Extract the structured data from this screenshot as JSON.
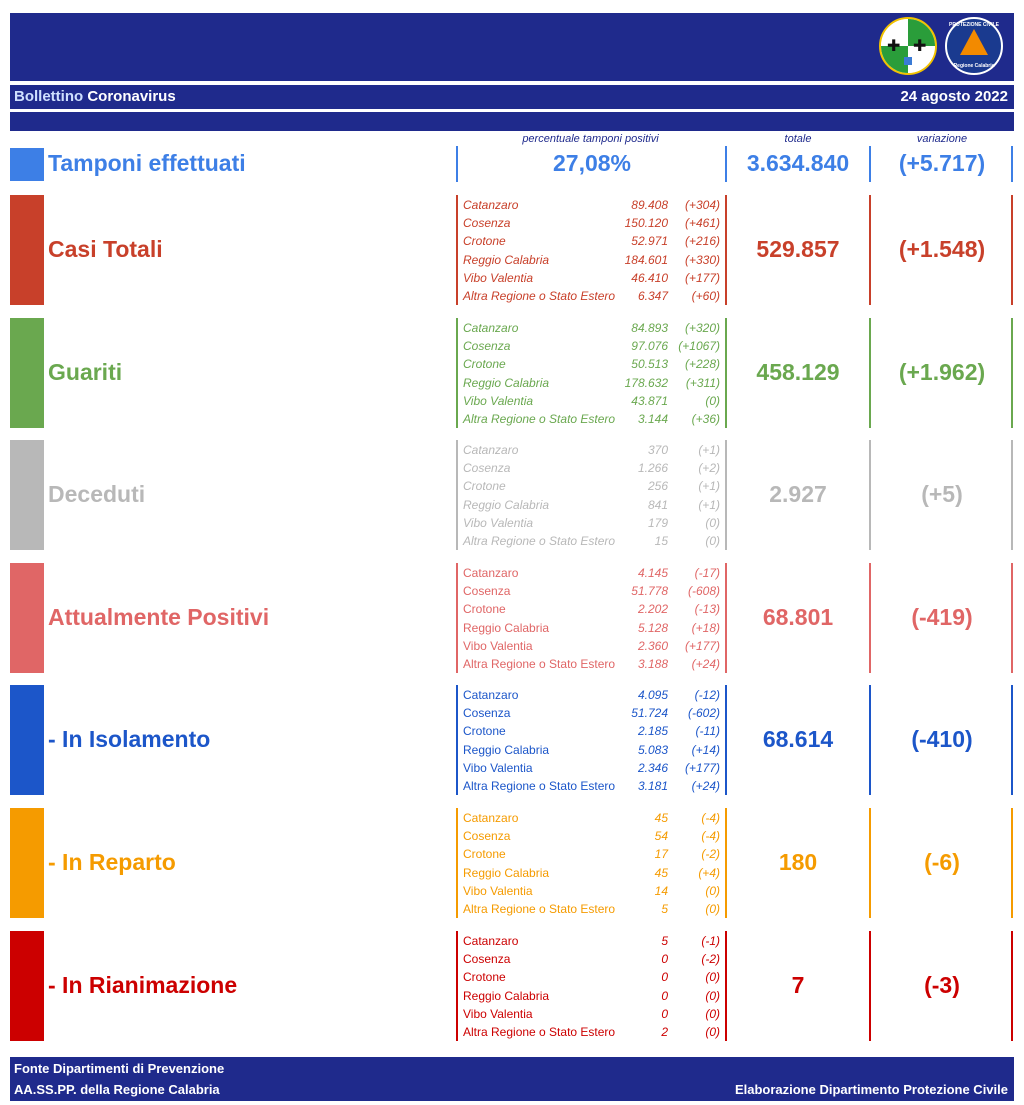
{
  "header": {
    "title_part1": "Bollettino",
    "title_part2": "Coronavirus",
    "date": "24 agosto 2022",
    "logo_right_text_top": "PROTEZIONE CIVILE",
    "logo_right_text_bottom": "Regione Calabria"
  },
  "columns": {
    "percent": "percentuale tamponi positivi",
    "total": "totale",
    "variation": "variazione"
  },
  "tamponi": {
    "label": "Tamponi effettuati",
    "percent": "27,08%",
    "total": "3.634.840",
    "variation": "(+5.717)",
    "color": "#3d7fe6"
  },
  "sections": [
    {
      "key": "casi",
      "label": "Casi Totali",
      "color": "#c8402a",
      "total": "529.857",
      "variation": "(+1.548)",
      "italic_names": true,
      "provinces": [
        {
          "name": "Catanzaro",
          "value": "89.408",
          "delta": "(+304)"
        },
        {
          "name": "Cosenza",
          "value": "150.120",
          "delta": "(+461)"
        },
        {
          "name": "Crotone",
          "value": "52.971",
          "delta": "(+216)"
        },
        {
          "name": "Reggio Calabria",
          "value": "184.601",
          "delta": "(+330)"
        },
        {
          "name": "Vibo Valentia",
          "value": "46.410",
          "delta": "(+177)"
        },
        {
          "name": "Altra Regione o Stato Estero",
          "value": "6.347",
          "delta": "(+60)"
        }
      ]
    },
    {
      "key": "guariti",
      "label": "Guariti",
      "color": "#6aa84f",
      "total": "458.129",
      "variation": "(+1.962)",
      "italic_names": true,
      "provinces": [
        {
          "name": "Catanzaro",
          "value": "84.893",
          "delta": "(+320)"
        },
        {
          "name": "Cosenza",
          "value": "97.076",
          "delta": "(+1067)"
        },
        {
          "name": "Crotone",
          "value": "50.513",
          "delta": "(+228)"
        },
        {
          "name": "Reggio Calabria",
          "value": "178.632",
          "delta": "(+311)"
        },
        {
          "name": "Vibo Valentia",
          "value": "43.871",
          "delta": "(0)"
        },
        {
          "name": "Altra Regione o Stato Estero",
          "value": "3.144",
          "delta": "(+36)"
        }
      ]
    },
    {
      "key": "deceduti",
      "label": "Deceduti",
      "color": "#b8b8b8",
      "total": "2.927",
      "variation": "(+5)",
      "italic_names": true,
      "provinces": [
        {
          "name": "Catanzaro",
          "value": "370",
          "delta": "(+1)"
        },
        {
          "name": "Cosenza",
          "value": "1.266",
          "delta": "(+2)"
        },
        {
          "name": "Crotone",
          "value": "256",
          "delta": "(+1)"
        },
        {
          "name": "Reggio Calabria",
          "value": "841",
          "delta": "(+1)"
        },
        {
          "name": "Vibo Valentia",
          "value": "179",
          "delta": "(0)"
        },
        {
          "name": "Altra Regione o Stato Estero",
          "value": "15",
          "delta": "(0)"
        }
      ]
    },
    {
      "key": "positivi",
      "label": "Attualmente Positivi",
      "color": "#e06666",
      "total": "68.801",
      "variation": "(-419)",
      "italic_names": false,
      "provinces": [
        {
          "name": "Catanzaro",
          "value": "4.145",
          "delta": "(-17)"
        },
        {
          "name": "Cosenza",
          "value": "51.778",
          "delta": "(-608)"
        },
        {
          "name": "Crotone",
          "value": "2.202",
          "delta": "(-13)"
        },
        {
          "name": "Reggio Calabria",
          "value": "5.128",
          "delta": "(+18)"
        },
        {
          "name": "Vibo Valentia",
          "value": "2.360",
          "delta": "(+177)"
        },
        {
          "name": "Altra Regione o Stato Estero",
          "value": "3.188",
          "delta": "(+24)"
        }
      ]
    },
    {
      "key": "isolamento",
      "label": " - In Isolamento",
      "color": "#1c56c9",
      "total": "68.614",
      "variation": "(-410)",
      "italic_names": false,
      "provinces": [
        {
          "name": "Catanzaro",
          "value": "4.095",
          "delta": "(-12)"
        },
        {
          "name": "Cosenza",
          "value": "51.724",
          "delta": "(-602)"
        },
        {
          "name": "Crotone",
          "value": "2.185",
          "delta": "(-11)"
        },
        {
          "name": "Reggio Calabria",
          "value": "5.083",
          "delta": "(+14)"
        },
        {
          "name": "Vibo Valentia",
          "value": "2.346",
          "delta": "(+177)"
        },
        {
          "name": "Altra Regione o Stato Estero",
          "value": "3.181",
          "delta": "(+24)"
        }
      ]
    },
    {
      "key": "reparto",
      "label": " - In Reparto",
      "color": "#f59b00",
      "total": "180",
      "variation": "(-6)",
      "italic_names": false,
      "provinces": [
        {
          "name": "Catanzaro",
          "value": "45",
          "delta": "(-4)"
        },
        {
          "name": "Cosenza",
          "value": "54",
          "delta": "(-4)"
        },
        {
          "name": "Crotone",
          "value": "17",
          "delta": "(-2)"
        },
        {
          "name": "Reggio Calabria",
          "value": "45",
          "delta": "(+4)"
        },
        {
          "name": "Vibo Valentia",
          "value": "14",
          "delta": "(0)"
        },
        {
          "name": "Altra Regione o Stato Estero",
          "value": "5",
          "delta": "(0)"
        }
      ]
    },
    {
      "key": "rianimazione",
      "label": " - In Rianimazione",
      "color": "#cc0000",
      "total": "7",
      "variation": "(-3)",
      "italic_names": false,
      "provinces": [
        {
          "name": "Catanzaro",
          "value": "5",
          "delta": "(-1)"
        },
        {
          "name": "Cosenza",
          "value": "0",
          "delta": "(-2)"
        },
        {
          "name": "Crotone",
          "value": "0",
          "delta": "(0)"
        },
        {
          "name": "Reggio Calabria",
          "value": "0",
          "delta": "(0)"
        },
        {
          "name": "Vibo Valentia",
          "value": "0",
          "delta": "(0)"
        },
        {
          "name": "Altra Regione o Stato Estero",
          "value": "2",
          "delta": "(0)"
        }
      ]
    }
  ],
  "footer": {
    "line1": "Fonte Dipartimenti di Prevenzione",
    "line2": "AA.SS.PP.  della Regione Calabria",
    "right": "Elaborazione Dipartimento Protezione Civile"
  }
}
